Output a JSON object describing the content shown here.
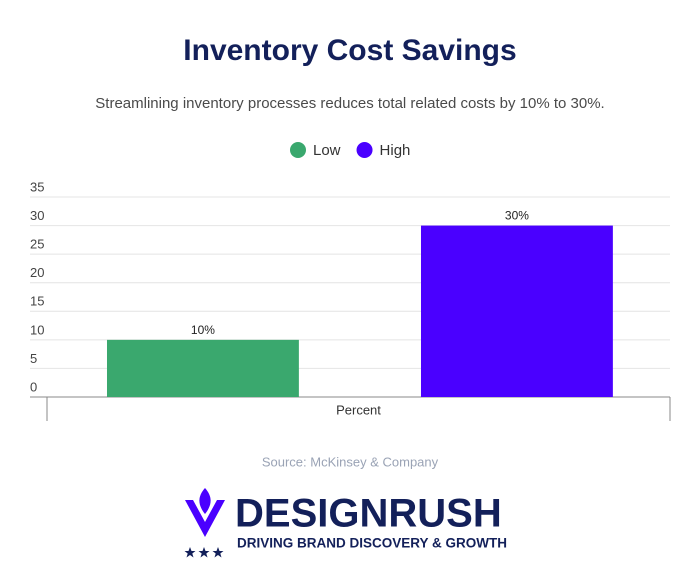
{
  "chart_data": {
    "type": "bar",
    "title": "Inventory Cost Savings",
    "subtitle": "Streamlining inventory processes reduces total related costs by 10% to 30%.",
    "categories": [
      "Percent"
    ],
    "series": [
      {
        "name": "Low",
        "color": "#3aa86e",
        "values": [
          10
        ],
        "value_labels": [
          "10%"
        ]
      },
      {
        "name": "High",
        "color": "#4a00ff",
        "values": [
          30
        ],
        "value_labels": [
          "30%"
        ]
      }
    ],
    "ylim": [
      0,
      35
    ],
    "yticks": [
      0,
      5,
      10,
      15,
      20,
      25,
      30,
      35
    ],
    "grid": true,
    "legend": "top",
    "source": "Source: McKinsey & Company"
  },
  "brand": {
    "name": "DESIGNRUSH",
    "tagline": "DRIVING BRAND DISCOVERY & GROWTH"
  }
}
